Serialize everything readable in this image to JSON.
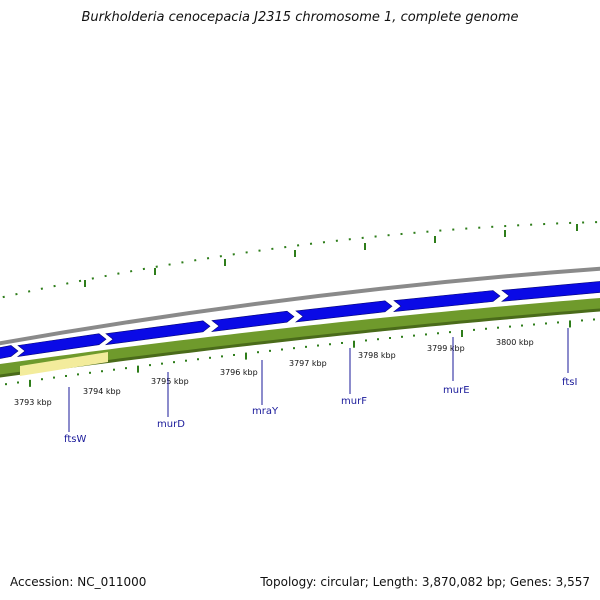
{
  "title": "Burkholderia cenocepacia J2315 chromosome 1, complete genome",
  "accession": "Accession: NC_011000",
  "topology": "Topology: circular; Length: 3,870,082 bp; Genes: 3,557",
  "colors": {
    "gene_arrow": "#0a0ae6",
    "gc_band": "#6f9a2c",
    "gc_band_dark": "#4a6b1a",
    "highlight": "#f3ec9c",
    "backbone": "#8c8c8c",
    "gc_skew": "#2e7d1a",
    "gene_label": "#1a1a9a"
  },
  "scale_labels": [
    {
      "text": "3793 kbp"
    },
    {
      "text": "3794 kbp"
    },
    {
      "text": "3795 kbp"
    },
    {
      "text": "3796 kbp"
    },
    {
      "text": "3797 kbp"
    },
    {
      "text": "3798 kbp"
    },
    {
      "text": "3799 kbp"
    },
    {
      "text": "3800 kbp"
    }
  ],
  "gene_labels": [
    {
      "text": "ftsW"
    },
    {
      "text": "murD"
    },
    {
      "text": "mraY"
    },
    {
      "text": "murF"
    },
    {
      "text": "murE"
    },
    {
      "text": "ftsI"
    }
  ]
}
